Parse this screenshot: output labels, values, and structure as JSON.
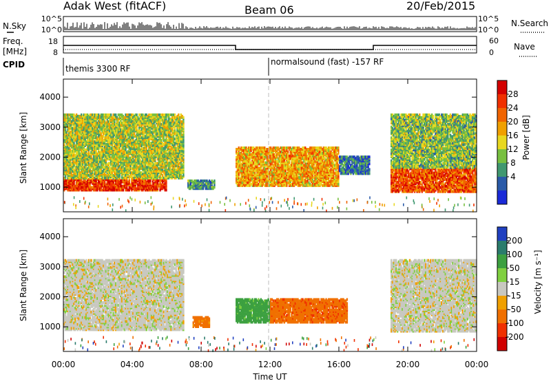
{
  "header": {
    "station": "Adak West (fitACF)",
    "beam": "Beam 06",
    "date": "20/Feb/2015"
  },
  "strips": {
    "nsky_label": "N.Sky",
    "nsearch_label": "N.Search",
    "freq_label_1": "Freq.",
    "freq_label_2": "[MHz]",
    "nave_label": "Nave",
    "cpid_label": "CPID",
    "noise_ticks_left": [
      "10^5",
      "10^0"
    ],
    "noise_ticks_right": [
      "10^5",
      "10^0"
    ],
    "freq_ticks": [
      "18",
      "8"
    ],
    "nave_ticks": [
      "60",
      "0"
    ],
    "cpid_1": "themis 3300 RF",
    "cpid_2": "normalsound (fast) -157 RF"
  },
  "axes": {
    "x_label": "Time UT",
    "x_ticks": [
      "00:00",
      "04:00",
      "08:00",
      "12:00",
      "16:00",
      "20:00",
      "00:00"
    ],
    "y_label_power": "Slant Range [km]",
    "y_label_velocity": "Slant Range [km]",
    "y_ticks": [
      "4000",
      "3000",
      "2000",
      "1000"
    ]
  },
  "colorbars": {
    "power": {
      "label": "Power [dB]",
      "ticks": [
        "28",
        "24",
        "20",
        "16",
        "12",
        "8",
        "4"
      ],
      "colors": [
        "#d40000",
        "#f03000",
        "#f06400",
        "#f0a000",
        "#e8d820",
        "#78c040",
        "#409870",
        "#2a5aa8",
        "#1a2ad8"
      ]
    },
    "velocity": {
      "label": "Velocity [m s⁻¹]",
      "ticks": [
        "200",
        "100",
        "50",
        "15",
        "-15",
        "-50",
        "-100",
        "-200"
      ],
      "colors": [
        "#2040c0",
        "#2a7c6c",
        "#3ca040",
        "#80d040",
        "#c8c8c0",
        "#f0a000",
        "#f07000",
        "#f03000",
        "#d00000"
      ]
    }
  },
  "chart_data": [
    {
      "type": "heatmap",
      "panel": "power",
      "x": {
        "range": [
          "00:00",
          "24:00"
        ],
        "unit": "UT hours"
      },
      "y": {
        "range": [
          180,
          4600
        ],
        "unit": "km"
      },
      "regions": [
        {
          "t": [
            0.0,
            6.0
          ],
          "range_km": [
            950,
            1350
          ],
          "power_db": 28
        },
        {
          "t": [
            0.0,
            7.0
          ],
          "range_km": [
            1350,
            3500
          ],
          "power_db": 14
        },
        {
          "t": [
            7.2,
            8.8
          ],
          "range_km": [
            1000,
            1300
          ],
          "power_db": 8
        },
        {
          "t": [
            10.0,
            16.0
          ],
          "range_km": [
            1100,
            2400
          ],
          "power_db": 20
        },
        {
          "t": [
            16.0,
            17.8
          ],
          "range_km": [
            1500,
            2100
          ],
          "power_db": 6
        },
        {
          "t": [
            19.0,
            24.0
          ],
          "range_km": [
            900,
            1700
          ],
          "power_db": 26
        },
        {
          "t": [
            19.0,
            24.0
          ],
          "range_km": [
            1700,
            3500
          ],
          "power_db": 12
        }
      ]
    },
    {
      "type": "heatmap",
      "panel": "velocity",
      "x": {
        "range": [
          "00:00",
          "24:00"
        ],
        "unit": "UT hours"
      },
      "y": {
        "range": [
          180,
          4600
        ],
        "unit": "km"
      },
      "regions": [
        {
          "t": [
            0.0,
            7.0
          ],
          "range_km": [
            950,
            3300
          ],
          "velocity": 0
        },
        {
          "t": [
            7.5,
            8.5
          ],
          "range_km": [
            1050,
            1400
          ],
          "velocity": -50
        },
        {
          "t": [
            10.0,
            12.0
          ],
          "range_km": [
            1200,
            2000
          ],
          "velocity": 50
        },
        {
          "t": [
            12.0,
            16.5
          ],
          "range_km": [
            1200,
            2000
          ],
          "velocity": -60
        },
        {
          "t": [
            19.0,
            24.0
          ],
          "range_km": [
            900,
            3300
          ],
          "velocity": 0
        }
      ]
    }
  ]
}
